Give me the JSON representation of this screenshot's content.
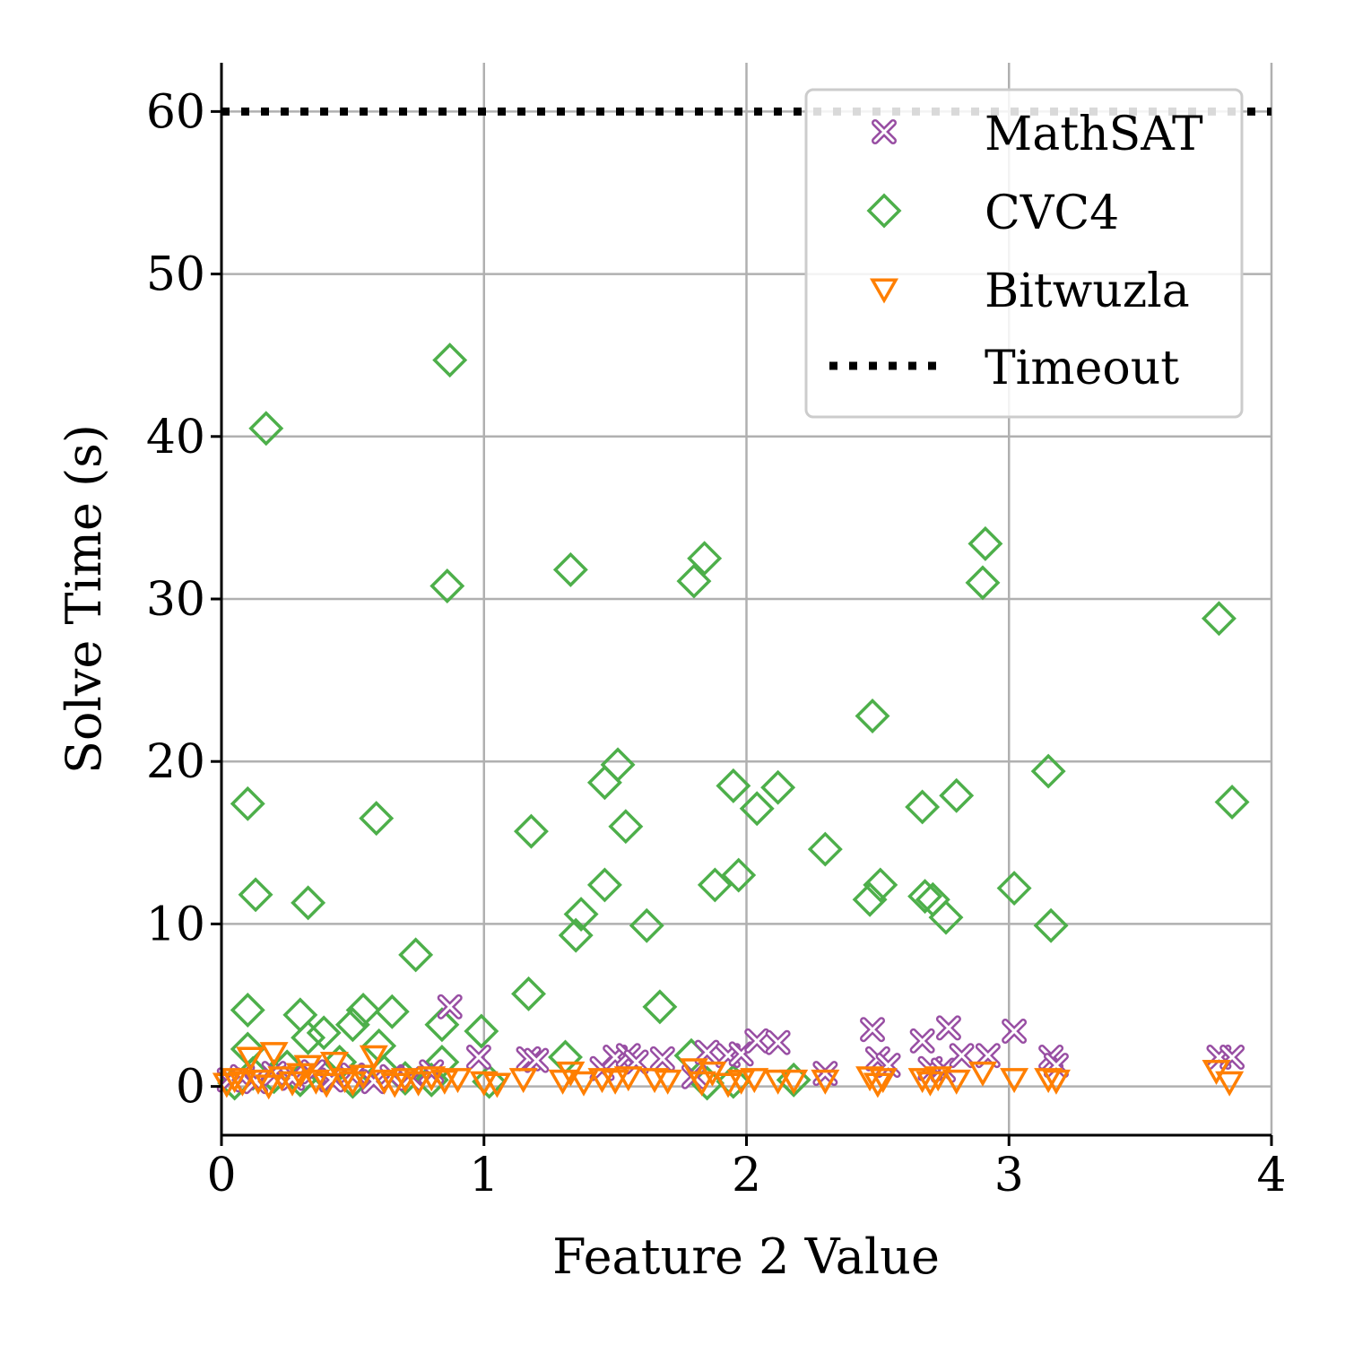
{
  "chart_data": {
    "type": "scatter",
    "title": "",
    "xlabel": "Feature 2 Value",
    "ylabel": "Solve Time (s)",
    "xlim": [
      0,
      4
    ],
    "ylim": [
      -3,
      63
    ],
    "xticks": [
      0,
      1,
      2,
      3,
      4
    ],
    "xtick_labels": [
      "0",
      "1",
      "2",
      "3",
      "4"
    ],
    "yticks": [
      0,
      10,
      20,
      30,
      40,
      50,
      60
    ],
    "ytick_labels": [
      "0",
      "10",
      "20",
      "30",
      "40",
      "50",
      "60"
    ],
    "grid": true,
    "legend_position": "top-right",
    "timeout": {
      "name": "Timeout",
      "value": 60,
      "style": "dotted",
      "color": "#000000"
    },
    "series": [
      {
        "name": "MathSAT",
        "marker": "x-circle",
        "color": "#984ea3",
        "points": [
          [
            0.03,
            0.4
          ],
          [
            0.08,
            0.6
          ],
          [
            0.13,
            0.3
          ],
          [
            0.2,
            0.8
          ],
          [
            0.27,
            0.5
          ],
          [
            0.35,
            0.9
          ],
          [
            0.42,
            0.4
          ],
          [
            0.5,
            0.7
          ],
          [
            0.58,
            0.3
          ],
          [
            0.65,
            0.6
          ],
          [
            0.72,
            0.5
          ],
          [
            0.8,
            0.9
          ],
          [
            0.87,
            4.9
          ],
          [
            0.98,
            1.8
          ],
          [
            1.17,
            1.7
          ],
          [
            1.2,
            1.6
          ],
          [
            1.45,
            1.1
          ],
          [
            1.5,
            1.8
          ],
          [
            1.55,
            1.9
          ],
          [
            1.58,
            1.5
          ],
          [
            1.68,
            1.7
          ],
          [
            1.8,
            0.6
          ],
          [
            1.85,
            2.1
          ],
          [
            1.93,
            1.9
          ],
          [
            1.98,
            2.0
          ],
          [
            2.04,
            2.8
          ],
          [
            2.12,
            2.7
          ],
          [
            2.3,
            0.8
          ],
          [
            2.48,
            3.5
          ],
          [
            2.5,
            1.7
          ],
          [
            2.54,
            1.3
          ],
          [
            2.67,
            2.8
          ],
          [
            2.7,
            1.1
          ],
          [
            2.75,
            1.0
          ],
          [
            2.77,
            3.6
          ],
          [
            2.82,
            1.9
          ],
          [
            2.92,
            1.9
          ],
          [
            3.02,
            3.4
          ],
          [
            3.16,
            1.8
          ],
          [
            3.18,
            1.3
          ],
          [
            3.8,
            1.8
          ],
          [
            3.85,
            1.8
          ]
        ]
      },
      {
        "name": "CVC4",
        "marker": "diamond",
        "color": "#4daf4a",
        "points": [
          [
            0.1,
            17.4
          ],
          [
            0.13,
            11.8
          ],
          [
            0.17,
            40.5
          ],
          [
            0.33,
            11.3
          ],
          [
            0.59,
            16.5
          ],
          [
            0.74,
            8.1
          ],
          [
            0.86,
            30.8
          ],
          [
            0.87,
            44.7
          ],
          [
            0.1,
            4.7
          ],
          [
            0.1,
            2.3
          ],
          [
            0.3,
            4.4
          ],
          [
            0.33,
            3.0
          ],
          [
            0.39,
            3.3
          ],
          [
            0.5,
            3.8
          ],
          [
            0.54,
            4.7
          ],
          [
            0.65,
            4.6
          ],
          [
            0.6,
            2.5
          ],
          [
            0.84,
            3.8
          ],
          [
            0.99,
            3.4
          ],
          [
            0.05,
            0.2
          ],
          [
            0.12,
            0.8
          ],
          [
            0.2,
            0.6
          ],
          [
            0.25,
            1.2
          ],
          [
            0.3,
            0.4
          ],
          [
            0.4,
            0.7
          ],
          [
            0.45,
            1.5
          ],
          [
            0.5,
            0.3
          ],
          [
            0.62,
            0.9
          ],
          [
            0.7,
            0.5
          ],
          [
            0.8,
            0.4
          ],
          [
            0.84,
            1.5
          ],
          [
            1.02,
            0.3
          ],
          [
            1.17,
            5.7
          ],
          [
            1.18,
            15.7
          ],
          [
            1.31,
            1.8
          ],
          [
            1.33,
            31.8
          ],
          [
            1.35,
            9.3
          ],
          [
            1.37,
            10.6
          ],
          [
            1.46,
            12.4
          ],
          [
            1.46,
            18.7
          ],
          [
            1.51,
            19.8
          ],
          [
            1.54,
            16.0
          ],
          [
            1.62,
            9.9
          ],
          [
            1.67,
            4.9
          ],
          [
            1.79,
            1.9
          ],
          [
            1.8,
            31.1
          ],
          [
            1.84,
            32.5
          ],
          [
            1.88,
            12.4
          ],
          [
            1.95,
            18.5
          ],
          [
            1.97,
            13.0
          ],
          [
            2.04,
            17.1
          ],
          [
            2.12,
            18.4
          ],
          [
            2.18,
            0.4
          ],
          [
            2.3,
            14.6
          ],
          [
            1.85,
            0.2
          ],
          [
            1.95,
            0.3
          ],
          [
            2.47,
            11.5
          ],
          [
            2.48,
            22.8
          ],
          [
            2.51,
            12.4
          ],
          [
            2.67,
            17.2
          ],
          [
            2.68,
            11.7
          ],
          [
            2.71,
            11.5
          ],
          [
            2.76,
            10.4
          ],
          [
            2.8,
            17.9
          ],
          [
            2.9,
            31.0
          ],
          [
            2.91,
            33.4
          ],
          [
            3.02,
            12.2
          ],
          [
            3.15,
            19.4
          ],
          [
            3.16,
            9.9
          ],
          [
            3.8,
            28.8
          ],
          [
            3.85,
            17.5
          ]
        ]
      },
      {
        "name": "Bitwuzla",
        "marker": "triangle-down",
        "color": "#ff7f00",
        "points": [
          [
            0.02,
            0.2
          ],
          [
            0.05,
            0.5
          ],
          [
            0.08,
            0.3
          ],
          [
            0.11,
            1.8
          ],
          [
            0.14,
            0.4
          ],
          [
            0.18,
            0.1
          ],
          [
            0.2,
            2.1
          ],
          [
            0.23,
            0.6
          ],
          [
            0.27,
            0.3
          ],
          [
            0.3,
            0.8
          ],
          [
            0.33,
            1.3
          ],
          [
            0.36,
            0.4
          ],
          [
            0.4,
            0.2
          ],
          [
            0.43,
            1.5
          ],
          [
            0.47,
            0.5
          ],
          [
            0.5,
            0.3
          ],
          [
            0.54,
            0.7
          ],
          [
            0.58,
            1.9
          ],
          [
            0.62,
            0.4
          ],
          [
            0.66,
            0.2
          ],
          [
            0.7,
            0.5
          ],
          [
            0.75,
            0.3
          ],
          [
            0.8,
            0.6
          ],
          [
            0.85,
            0.4
          ],
          [
            0.9,
            0.5
          ],
          [
            1.0,
            0.3
          ],
          [
            1.05,
            0.2
          ],
          [
            1.15,
            0.5
          ],
          [
            1.3,
            0.4
          ],
          [
            1.33,
            0.9
          ],
          [
            1.38,
            0.3
          ],
          [
            1.45,
            0.5
          ],
          [
            1.5,
            0.4
          ],
          [
            1.55,
            0.6
          ],
          [
            1.65,
            0.5
          ],
          [
            1.7,
            0.4
          ],
          [
            1.8,
            1.1
          ],
          [
            1.83,
            0.3
          ],
          [
            1.87,
            0.9
          ],
          [
            1.93,
            0.2
          ],
          [
            1.98,
            0.4
          ],
          [
            2.03,
            0.5
          ],
          [
            2.12,
            0.4
          ],
          [
            2.18,
            0.4
          ],
          [
            2.3,
            0.4
          ],
          [
            2.47,
            0.6
          ],
          [
            2.5,
            0.2
          ],
          [
            2.52,
            0.5
          ],
          [
            2.67,
            0.5
          ],
          [
            2.7,
            0.3
          ],
          [
            2.73,
            0.6
          ],
          [
            2.8,
            0.4
          ],
          [
            2.9,
            0.9
          ],
          [
            3.02,
            0.5
          ],
          [
            3.15,
            0.5
          ],
          [
            3.18,
            0.4
          ],
          [
            3.79,
            1.0
          ],
          [
            3.84,
            0.3
          ]
        ]
      }
    ]
  }
}
